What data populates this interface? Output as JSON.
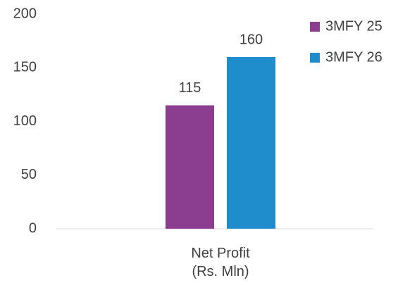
{
  "chart_data": {
    "type": "bar",
    "categories": [
      "Net Profit (Rs. Mln)"
    ],
    "series": [
      {
        "name": "3MFY 25",
        "color": "#8B3E8F",
        "values": [
          115
        ]
      },
      {
        "name": "3MFY 26",
        "color": "#1F8DCB",
        "values": [
          160
        ]
      }
    ],
    "ylim": [
      0,
      200
    ],
    "yticks": [
      0,
      50,
      100,
      150,
      200
    ],
    "grid": false,
    "legend": "top-right"
  }
}
